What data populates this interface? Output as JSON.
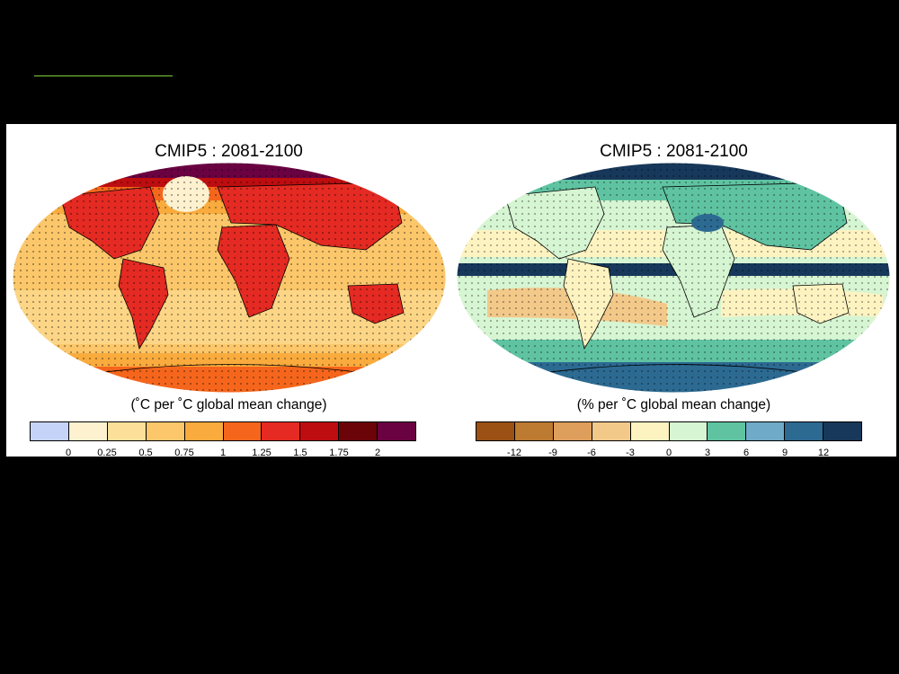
{
  "left_panel": {
    "title": "CMIP5 : 2081-2100",
    "units_label": "(˚C per ˚C global mean change)",
    "colorbar": {
      "colors": [
        "#c6d3f8",
        "#fdf1cf",
        "#fce09a",
        "#fbc76a",
        "#f9ab3d",
        "#f5661c",
        "#e42a22",
        "#bd0d10",
        "#6a0409",
        "#6a0242"
      ],
      "ticks": [
        "0",
        "0.25",
        "0.5",
        "0.75",
        "1",
        "1.25",
        "1.5",
        "1.75",
        "2"
      ]
    },
    "icons": [
      "land-outline-icon",
      "stippling-icon"
    ]
  },
  "right_panel": {
    "title": "CMIP5 : 2081-2100",
    "units_label": "(% per ˚C global mean change)",
    "colorbar": {
      "colors": [
        "#9a5113",
        "#bd7a31",
        "#de9f5d",
        "#f3c98a",
        "#fdf3c1",
        "#d6f5d2",
        "#5fc3a1",
        "#6faac8",
        "#2c6a92",
        "#17385a"
      ],
      "ticks": [
        "-12",
        "-9",
        "-6",
        "-3",
        "0",
        "3",
        "6",
        "9",
        "12"
      ]
    },
    "icons": [
      "land-outline-icon",
      "stippling-icon"
    ]
  }
}
